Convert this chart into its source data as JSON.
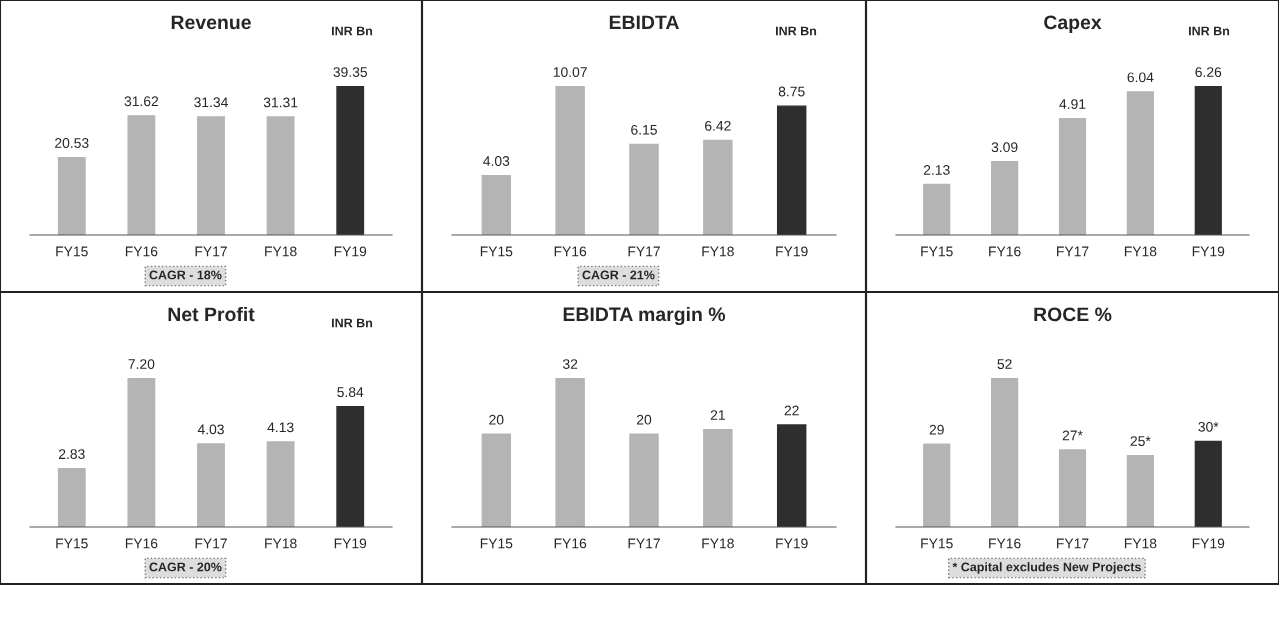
{
  "chart_data": [
    {
      "type": "bar",
      "title": "Revenue",
      "ylabel": "INR Bn",
      "categories": [
        "FY15",
        "FY16",
        "FY17",
        "FY18",
        "FY19"
      ],
      "values": [
        20.53,
        31.62,
        31.34,
        31.31,
        39.35
      ],
      "colors": [
        "#b4b4b4",
        "#b4b4b4",
        "#b4b4b4",
        "#b4b4b4",
        "#2e2e2e"
      ],
      "data_labels": true,
      "tick_labels": "x",
      "annotations": [
        "CAGR - 18%"
      ]
    },
    {
      "type": "bar",
      "title": "EBIDTA",
      "ylabel": "INR Bn",
      "categories": [
        "FY15",
        "FY16",
        "FY17",
        "FY18",
        "FY19"
      ],
      "values": [
        4.03,
        10.07,
        6.15,
        6.42,
        8.75
      ],
      "colors": [
        "#b4b4b4",
        "#b4b4b4",
        "#b4b4b4",
        "#b4b4b4",
        "#2e2e2e"
      ],
      "data_labels": true,
      "tick_labels": "x",
      "annotations": [
        "CAGR - 21%"
      ]
    },
    {
      "type": "bar",
      "title": "Capex",
      "ylabel": "INR Bn",
      "categories": [
        "FY15",
        "FY16",
        "FY17",
        "FY18",
        "FY19"
      ],
      "values": [
        2.13,
        3.09,
        4.91,
        6.04,
        6.26
      ],
      "colors": [
        "#b4b4b4",
        "#b4b4b4",
        "#b4b4b4",
        "#b4b4b4",
        "#2e2e2e"
      ],
      "data_labels": true,
      "tick_labels": "x"
    },
    {
      "type": "bar",
      "title": "Net Profit",
      "ylabel": "INR Bn",
      "categories": [
        "FY15",
        "FY16",
        "FY17",
        "FY18",
        "FY19"
      ],
      "values": [
        2.83,
        7.2,
        4.03,
        4.13,
        5.84
      ],
      "colors": [
        "#b4b4b4",
        "#b4b4b4",
        "#b4b4b4",
        "#b4b4b4",
        "#2e2e2e"
      ],
      "value_labels": [
        "2.83",
        "7.20",
        "4.03",
        "4.13",
        "5.84"
      ],
      "tick_labels": "x",
      "annotations": [
        "CAGR - 20%"
      ]
    },
    {
      "type": "bar",
      "title": "EBIDTA margin %",
      "categories": [
        "FY15",
        "FY16",
        "FY17",
        "FY18",
        "FY19"
      ],
      "values": [
        20,
        32,
        20,
        21,
        22
      ],
      "colors": [
        "#b4b4b4",
        "#b4b4b4",
        "#b4b4b4",
        "#b4b4b4",
        "#2e2e2e"
      ],
      "data_labels": true,
      "tick_labels": "x"
    },
    {
      "type": "bar",
      "title": "ROCE %",
      "categories": [
        "FY15",
        "FY16",
        "FY17",
        "FY18",
        "FY19"
      ],
      "values": [
        29,
        52,
        27,
        25,
        30
      ],
      "colors": [
        "#b4b4b4",
        "#b4b4b4",
        "#b4b4b4",
        "#b4b4b4",
        "#2e2e2e"
      ],
      "value_labels": [
        "29",
        "52",
        "27*",
        "25*",
        "30*"
      ],
      "tick_labels": "x",
      "annotations": [
        "* Capital excludes New Projects"
      ]
    }
  ]
}
